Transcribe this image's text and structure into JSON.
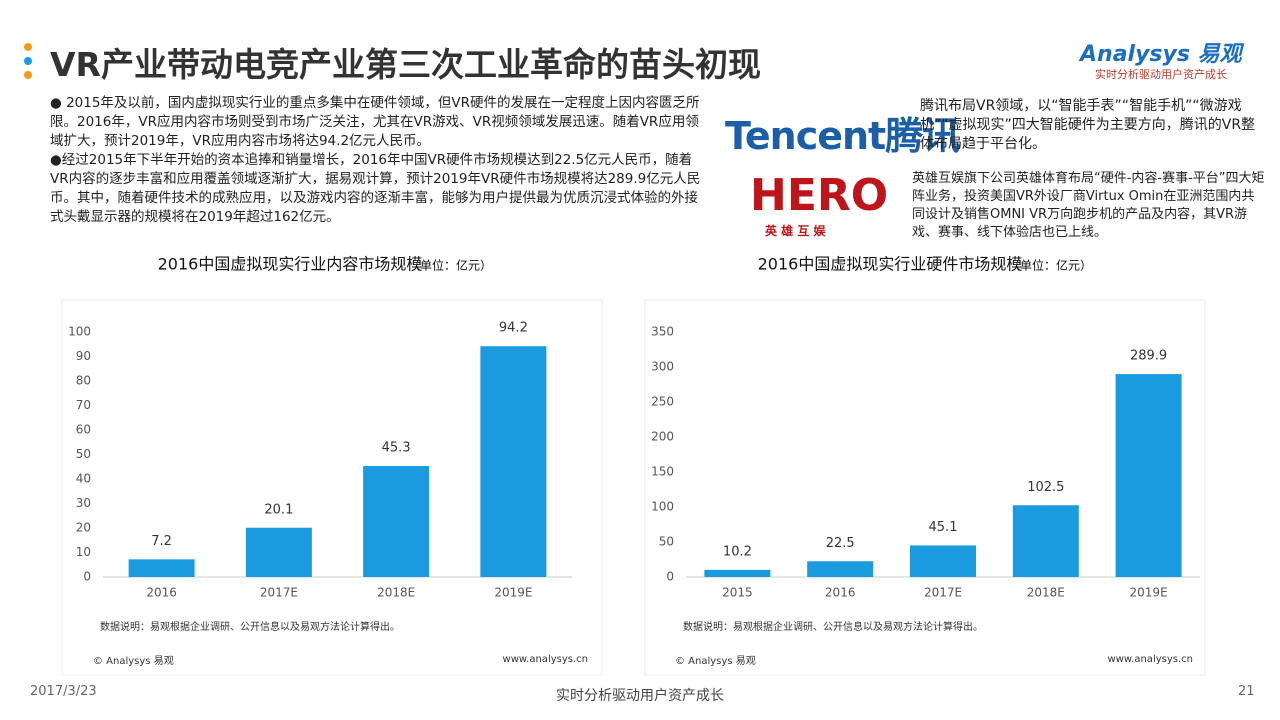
{
  "header": {
    "title": "VR产业带动电竞产业第三次工业革命的苗头初现",
    "logo": "Analysys 易观",
    "tagline": "实时分析驱动用户资产成长"
  },
  "left_text": [
    "● 2015年及以前，国内虚拟现实行业的重点多集中在硬件领域，但VR硬件的发展在一定程度上因内容匮乏所限。2016年，VR应用内容市场则受到市场广泛关注，尤其在VR游戏、VR视频领域发展迅速。随着VR应用领域扩大，预计2019年，VR应用内容市场将达94.2亿元人民币。",
    "●经过2015年下半年开始的资本追捧和销量增长，2016年中国VR硬件市场规模达到22.5亿元人民币，随着VR内容的逐步丰富和应用覆盖领域逐渐扩大，据易观计算，预计2019年VR硬件市场规模将达289.9亿元人民币。其中，随着硬件技术的成熟应用，以及游戏内容的逐渐丰富，能够为用户提供最为优质沉浸式体验的外接式头戴显示器的规模将在2019年超过162亿元。"
  ],
  "companies": [
    {
      "logo": "Tencent腾讯",
      "text": "腾讯布局VR领域，以“智能手表”“智能手机”“微游戏机”“虚拟现实”四大智能硬件为主要方向，腾讯的VR整体布局趋于平台化。"
    },
    {
      "logo": "HERO",
      "logo_sub": "英 雄 互 娱",
      "text": "英雄互娱旗下公司英雄体育布局“硬件-内容-赛事-平台”四大矩阵业务，投资美国VR外设厂商Virtux Omin在亚洲范围内共同设计及销售OMNI VR万向跑步机的产品及内容，其VR游戏、赛事、线下体验店也已上线。"
    }
  ],
  "chart_data": [
    {
      "type": "bar",
      "title": "2016中国虚拟现实行业内容市场规模",
      "subtitle": "（单位：亿元）",
      "categories": [
        "2016",
        "2017E",
        "2018E",
        "2019E"
      ],
      "values": [
        7.2,
        20.1,
        45.3,
        94.2
      ],
      "color": "#1a9be0",
      "ylim": [
        0,
        100
      ],
      "yticks": [
        0,
        10,
        20,
        30,
        40,
        50,
        60,
        70,
        80,
        90,
        100
      ],
      "grid": false,
      "note": "数据说明：易观根据企业调研、公开信息以及易观方法论计算得出。",
      "source": "© Analysys 易观",
      "website": "www.analysys.cn"
    },
    {
      "type": "bar",
      "title": "2016中国虚拟现实行业硬件市场规模",
      "subtitle": "（单位：亿元）",
      "categories": [
        "2015",
        "2016",
        "2017E",
        "2018E",
        "2019E"
      ],
      "values": [
        10.2,
        22.5,
        45.1,
        102.5,
        289.9
      ],
      "color": "#1a9be0",
      "ylim": [
        0,
        350
      ],
      "yticks": [
        0,
        50,
        100,
        150,
        200,
        250,
        300,
        350
      ],
      "grid": false,
      "note": "数据说明：易观根据企业调研、公开信息以及易观方法论计算得出。",
      "source": "© Analysys 易观",
      "website": "www.analysys.cn"
    }
  ],
  "footer": {
    "date": "2017/3/23",
    "tagline": "实时分析驱动用户资产成长",
    "page": "21"
  }
}
